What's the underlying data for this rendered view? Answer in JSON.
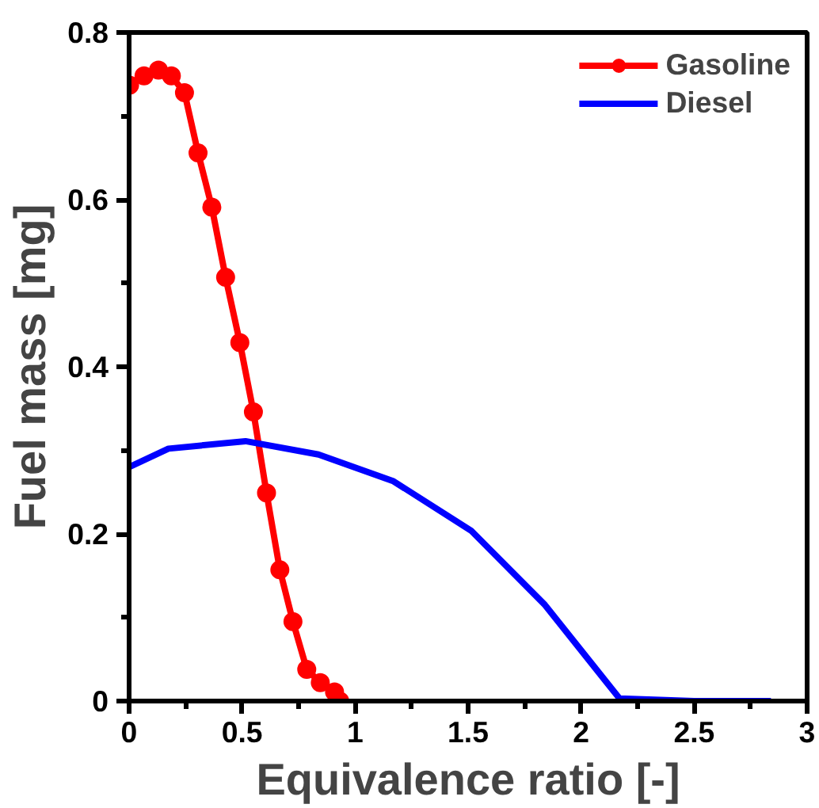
{
  "chart_data": {
    "type": "line",
    "xlabel": "Equivalence ratio [-]",
    "ylabel": "Fuel mass [mg]",
    "xlim": [
      0,
      3
    ],
    "ylim": [
      0,
      0.8
    ],
    "xticks": [
      0,
      0.5,
      1,
      1.5,
      2,
      2.5,
      3
    ],
    "yticks": [
      0,
      0.2,
      0.4,
      0.6,
      0.8
    ],
    "grid": false,
    "legend": "top right",
    "line_style": "solid",
    "series": [
      {
        "name": "Gasoline",
        "color": "#ff0000",
        "marker": "circle",
        "x": [
          0.002,
          0.066,
          0.13,
          0.187,
          0.245,
          0.305,
          0.366,
          0.427,
          0.49,
          0.55,
          0.608,
          0.667,
          0.725,
          0.786,
          0.846,
          0.909,
          0.932
        ],
        "values": [
          0.737,
          0.748,
          0.755,
          0.748,
          0.728,
          0.656,
          0.591,
          0.507,
          0.429,
          0.346,
          0.249,
          0.157,
          0.095,
          0.038,
          0.022,
          0.011,
          0.0
        ]
      },
      {
        "name": "Diesel",
        "color": "#0000ff",
        "marker": "none",
        "x": [
          0,
          0.174,
          0.515,
          0.838,
          1.17,
          1.513,
          1.84,
          2.17,
          2.5,
          2.84
        ],
        "values": [
          0.28,
          0.302,
          0.311,
          0.295,
          0.263,
          0.204,
          0.115,
          0.003,
          0.0,
          0.0
        ]
      }
    ]
  }
}
